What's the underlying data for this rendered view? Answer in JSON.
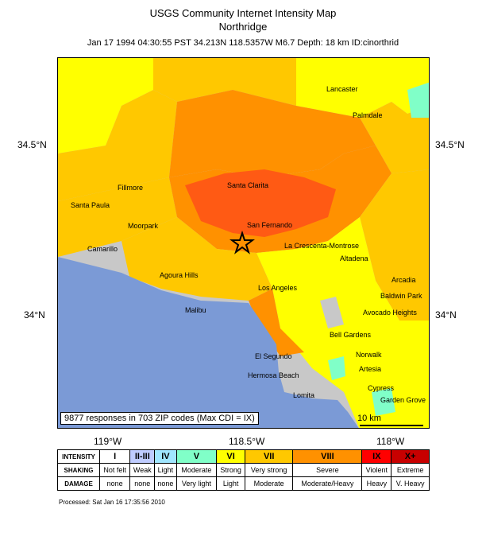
{
  "header": {
    "title": "USGS Community Internet Intensity Map",
    "subtitle": "Northridge",
    "event_line": "Jan 17 1994 04:30:55 PST 34.213N 118.5357W M6.7 Depth: 18 km ID:cinorthrid"
  },
  "axes": {
    "lat_labels": [
      "34.5°N",
      "34°N"
    ],
    "lon_labels": [
      "119°W",
      "118.5°W",
      "118°W"
    ]
  },
  "places": [
    "Lancaster",
    "Palmdale",
    "Santa Clarita",
    "Fillmore",
    "Santa Paula",
    "Moorpark",
    "San Fernando",
    "Camarillo",
    "La Crescenta-Montrose",
    "Altadena",
    "Agoura Hills",
    "Arcadia",
    "Los Angeles",
    "Baldwin Park",
    "Malibu",
    "Avocado Heights",
    "Bell Gardens",
    "Norwalk",
    "El Segundo",
    "Artesia",
    "Hermosa Beach",
    "Cypress",
    "Lomita",
    "Garden Grove"
  ],
  "map": {
    "responses_text": "9877 responses in 703 ZIP codes (Max CDI = IX)",
    "scale_label": "10 km",
    "ocean_color": "#7b9ad6",
    "epicenter": "star-icon"
  },
  "legend": {
    "row_labels": [
      "INTENSITY",
      "SHAKING",
      "DAMAGE"
    ],
    "levels": [
      {
        "intensity": "I",
        "shaking": "Not felt",
        "damage": "none",
        "color": "#ffffff"
      },
      {
        "intensity": "II-III",
        "shaking": "Weak",
        "damage": "none",
        "color": "#bfccff"
      },
      {
        "intensity": "IV",
        "shaking": "Light",
        "damage": "none",
        "color": "#a0e6ff"
      },
      {
        "intensity": "V",
        "shaking": "Moderate",
        "damage": "Very light",
        "color": "#80ffc8"
      },
      {
        "intensity": "VI",
        "shaking": "Strong",
        "damage": "Light",
        "color": "#ffff00"
      },
      {
        "intensity": "VII",
        "shaking": "Very strong",
        "damage": "Moderate",
        "color": "#ffc800"
      },
      {
        "intensity": "VIII",
        "shaking": "Severe",
        "damage": "Moderate/Heavy",
        "color": "#ff9100"
      },
      {
        "intensity": "IX",
        "shaking": "Violent",
        "damage": "Heavy",
        "color": "#ff0000"
      },
      {
        "intensity": "X+",
        "shaking": "Extreme",
        "damage": "V. Heavy",
        "color": "#c80000"
      }
    ]
  },
  "footer": {
    "processed": "Processed: Sat Jan 16 17:35:56 2010"
  }
}
